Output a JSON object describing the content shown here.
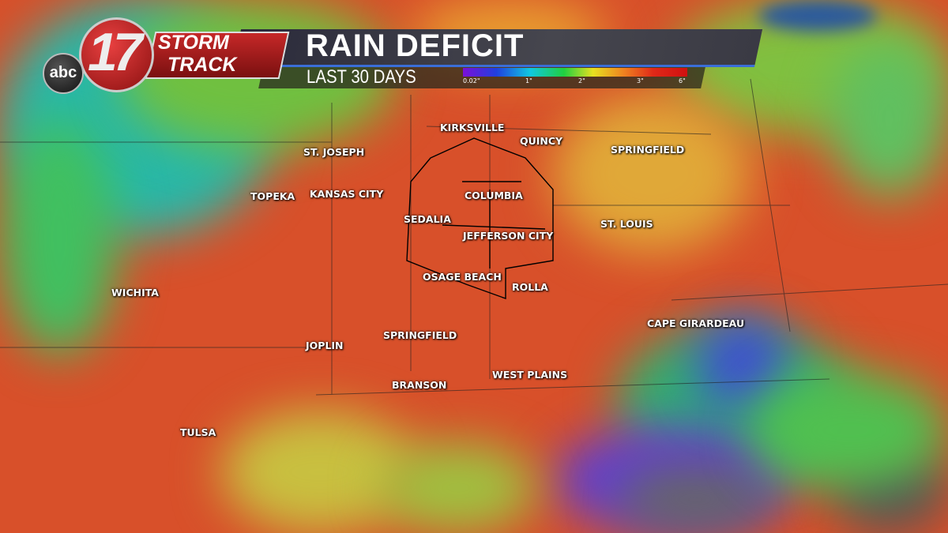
{
  "header": {
    "logo_network": "abc",
    "logo_channel": "17",
    "logo_brand_line1": "STORM",
    "logo_brand_line2": "TRACK",
    "title": "RAIN DEFICIT",
    "subtitle": "LAST 30 DAYS"
  },
  "legend": {
    "ticks": [
      "0.02\"",
      "1\"",
      "2\"",
      "3\"",
      "6\""
    ],
    "colors": [
      "#7a10d8",
      "#2040e0",
      "#10c8e0",
      "#20d040",
      "#e8e020",
      "#f08020",
      "#e02818"
    ]
  },
  "cities": [
    {
      "name": "KIRKSVILLE"
    },
    {
      "name": "QUINCY"
    },
    {
      "name": "SPRINGFIELD"
    },
    {
      "name": "ST. JOSEPH"
    },
    {
      "name": "TOPEKA"
    },
    {
      "name": "KANSAS CITY"
    },
    {
      "name": "COLUMBIA"
    },
    {
      "name": "SEDALIA"
    },
    {
      "name": "ST. LOUIS"
    },
    {
      "name": "JEFFERSON CITY"
    },
    {
      "name": "OSAGE BEACH"
    },
    {
      "name": "ROLLA"
    },
    {
      "name": "WICHITA"
    },
    {
      "name": "CAPE GIRARDEAU"
    },
    {
      "name": "JOPLIN"
    },
    {
      "name": "SPRINGFIELD"
    },
    {
      "name": "WEST PLAINS"
    },
    {
      "name": "BRANSON"
    },
    {
      "name": "TULSA"
    }
  ]
}
